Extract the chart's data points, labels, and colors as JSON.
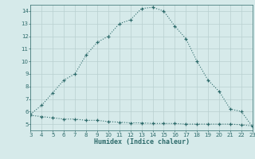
{
  "xlabel": "Humidex (Indice chaleur)",
  "x_values": [
    3,
    4,
    5,
    6,
    7,
    8,
    9,
    10,
    11,
    12,
    13,
    14,
    15,
    16,
    17,
    18,
    19,
    20,
    21,
    22,
    23
  ],
  "y_upper": [
    5.8,
    6.5,
    7.5,
    8.5,
    9.0,
    10.5,
    11.5,
    12.0,
    13.0,
    13.3,
    14.2,
    14.3,
    14.0,
    12.8,
    11.8,
    10.0,
    8.5,
    7.6,
    6.2,
    6.0,
    4.8
  ],
  "y_lower": [
    5.7,
    5.6,
    5.5,
    5.4,
    5.4,
    5.3,
    5.3,
    5.2,
    5.15,
    5.1,
    5.1,
    5.05,
    5.05,
    5.05,
    5.0,
    5.0,
    5.0,
    5.0,
    5.0,
    4.95,
    4.85
  ],
  "line_color": "#2e6b6b",
  "bg_color": "#d6eaea",
  "grid_color": "#b8d0d0",
  "xlim": [
    3,
    23
  ],
  "ylim": [
    4.5,
    14.5
  ],
  "yticks": [
    5,
    6,
    7,
    8,
    9,
    10,
    11,
    12,
    13,
    14
  ],
  "xticks": [
    3,
    4,
    5,
    6,
    7,
    8,
    9,
    10,
    11,
    12,
    13,
    14,
    15,
    16,
    17,
    18,
    19,
    20,
    21,
    22,
    23
  ],
  "tick_fontsize": 5.0,
  "xlabel_fontsize": 6.0
}
